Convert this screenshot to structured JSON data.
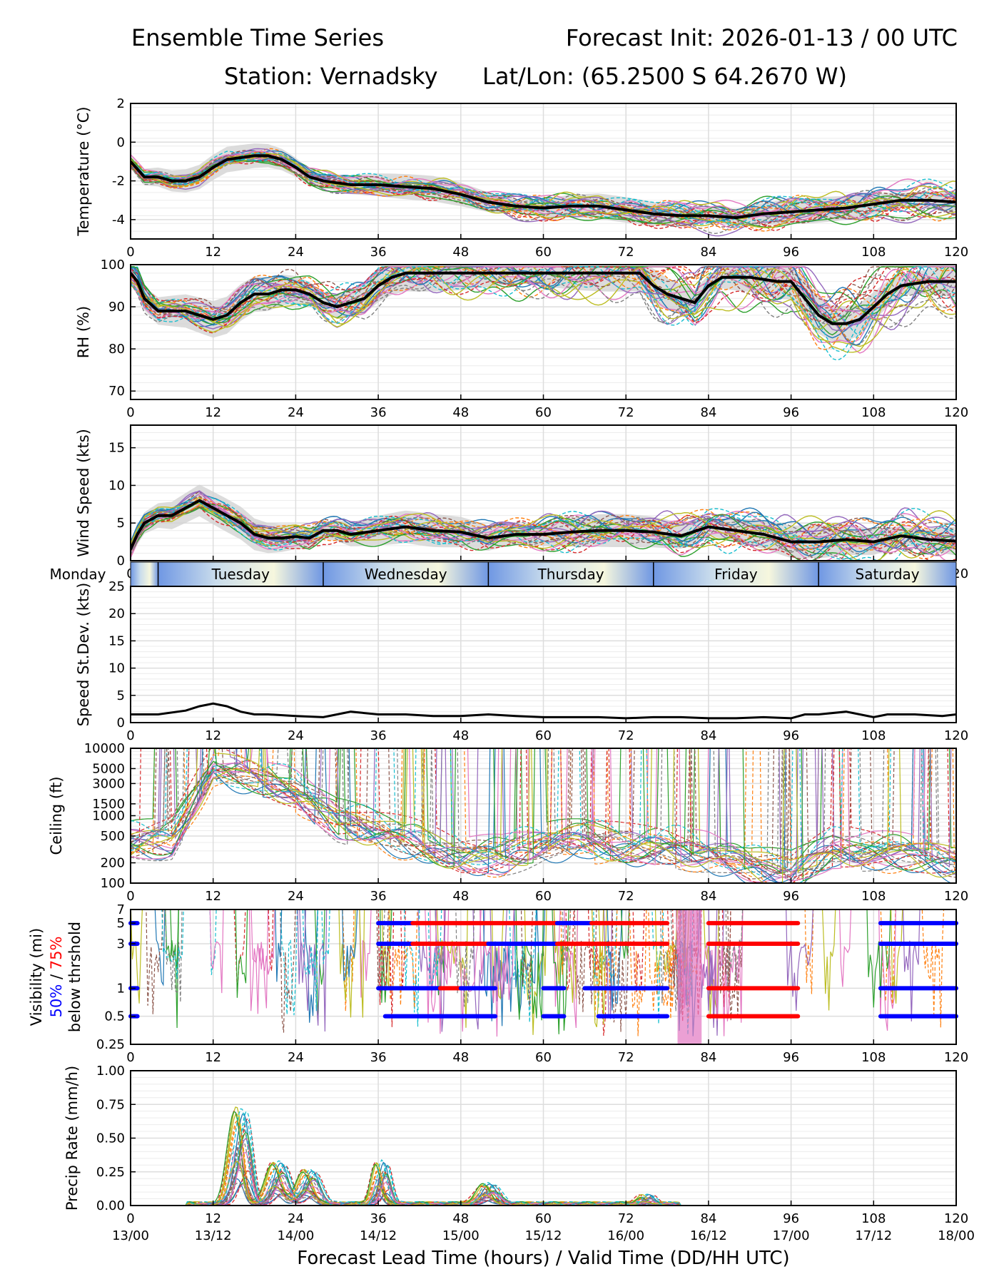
{
  "header": {
    "title_left": "Ensemble Time Series",
    "title_right": "Forecast Init: 2026-01-13 / 00 UTC",
    "station": "Station: Vernadsky",
    "latlon": "Lat/Lon: (65.2500 S 64.2670 W)"
  },
  "colors": {
    "mean": "#000000",
    "spread": "#d3d3d3",
    "vis50": "#0000ff",
    "vis75": "#ff0000",
    "members": [
      "#1f77b4",
      "#ff7f0e",
      "#2ca02c",
      "#d62728",
      "#9467bd",
      "#8c564b",
      "#e377c2",
      "#7f7f7f",
      "#bcbd22",
      "#17becf"
    ]
  },
  "chart_data": [
    {
      "type": "line",
      "id": "temperature",
      "ylabel": "Temperature (°C)",
      "xlim": [
        0,
        120
      ],
      "ylim": [
        -5,
        2
      ],
      "yticks": [
        -4,
        -2,
        0,
        2
      ],
      "xticks": [
        0,
        12,
        24,
        36,
        48,
        60,
        72,
        84,
        96,
        108,
        120
      ],
      "members": 30,
      "mean": {
        "x": [
          0,
          2,
          4,
          6,
          8,
          10,
          12,
          14,
          16,
          18,
          20,
          22,
          24,
          26,
          28,
          30,
          32,
          34,
          36,
          40,
          44,
          48,
          52,
          56,
          60,
          64,
          68,
          72,
          76,
          80,
          84,
          88,
          92,
          96,
          100,
          104,
          108,
          112,
          116,
          120
        ],
        "values": [
          -1.0,
          -1.8,
          -1.8,
          -2.0,
          -2.0,
          -1.8,
          -1.3,
          -0.9,
          -0.8,
          -0.7,
          -0.7,
          -0.9,
          -1.3,
          -1.8,
          -2.0,
          -2.1,
          -2.2,
          -2.2,
          -2.2,
          -2.3,
          -2.4,
          -2.7,
          -3.1,
          -3.3,
          -3.4,
          -3.3,
          -3.3,
          -3.5,
          -3.7,
          -3.8,
          -3.8,
          -3.9,
          -3.7,
          -3.6,
          -3.5,
          -3.4,
          -3.2,
          -3.0,
          -3.0,
          -3.1
        ]
      },
      "spread_width": 0.6
    },
    {
      "type": "line",
      "id": "rh",
      "ylabel": "RH (%)",
      "xlim": [
        0,
        120
      ],
      "ylim": [
        68,
        100
      ],
      "yticks": [
        70,
        80,
        90,
        100
      ],
      "xticks": [
        0,
        12,
        24,
        36,
        48,
        60,
        72,
        84,
        96,
        108,
        120
      ],
      "members": 30,
      "mean": {
        "x": [
          0,
          1,
          2,
          4,
          6,
          8,
          10,
          12,
          14,
          16,
          18,
          20,
          22,
          24,
          26,
          28,
          30,
          32,
          34,
          36,
          38,
          40,
          44,
          48,
          52,
          56,
          60,
          64,
          68,
          72,
          74,
          76,
          78,
          80,
          82,
          84,
          86,
          90,
          94,
          96,
          98,
          100,
          102,
          104,
          106,
          108,
          110,
          112,
          116,
          120
        ],
        "values": [
          98,
          96,
          92,
          89,
          89,
          89,
          88,
          87,
          88,
          91,
          93,
          93,
          94,
          94,
          93,
          91,
          90,
          91,
          92,
          95,
          97,
          98,
          98,
          98,
          98,
          98,
          98,
          98,
          98,
          98,
          98,
          95,
          93,
          92,
          91,
          95,
          97,
          97,
          96,
          96,
          92,
          88,
          86,
          86,
          87,
          90,
          93,
          95,
          96,
          96
        ]
      },
      "spread_width": 4
    },
    {
      "type": "line",
      "id": "wind",
      "ylabel": "Wind Speed (kts)",
      "xlim": [
        0,
        120
      ],
      "ylim": [
        0,
        18
      ],
      "yticks": [
        0,
        5,
        10,
        15
      ],
      "xticks": [
        0,
        12,
        24,
        36,
        48,
        60,
        72,
        84,
        96,
        108,
        120
      ],
      "members": 30,
      "mean": {
        "x": [
          0,
          1,
          2,
          4,
          6,
          8,
          10,
          12,
          14,
          16,
          18,
          20,
          22,
          24,
          26,
          28,
          30,
          32,
          36,
          40,
          44,
          48,
          52,
          56,
          60,
          64,
          68,
          72,
          76,
          80,
          84,
          88,
          92,
          96,
          100,
          104,
          108,
          112,
          116,
          120
        ],
        "values": [
          1.5,
          3.5,
          5,
          6,
          6,
          7,
          8,
          7,
          6,
          5,
          3.5,
          3,
          3,
          3.2,
          3,
          4,
          4,
          3.5,
          4,
          4.5,
          4,
          3.8,
          3,
          3.5,
          3.5,
          3.8,
          4,
          4,
          3.8,
          3.3,
          4.5,
          4,
          3.5,
          2.5,
          2.5,
          2.8,
          2.5,
          3.3,
          2.8,
          2.6
        ]
      },
      "spread_width": 2
    },
    {
      "type": "table",
      "id": "day-bar",
      "days": [
        "Monday",
        "Tuesday",
        "Wednesday",
        "Thursday",
        "Friday",
        "Saturday"
      ],
      "day_start_hours": [
        -20,
        4,
        28,
        52,
        76,
        100
      ]
    },
    {
      "type": "line",
      "id": "speed-stdev",
      "ylabel": "Speed St.Dev. (kts)",
      "xlim": [
        0,
        120
      ],
      "ylim": [
        0,
        25
      ],
      "yticks": [
        0,
        5,
        10,
        15,
        20,
        25
      ],
      "xticks": [
        0,
        12,
        24,
        36,
        48,
        60,
        72,
        84,
        96,
        108,
        120
      ],
      "mean": {
        "x": [
          0,
          4,
          8,
          10,
          12,
          14,
          16,
          18,
          20,
          24,
          28,
          30,
          32,
          36,
          40,
          44,
          48,
          52,
          56,
          60,
          64,
          68,
          72,
          76,
          80,
          84,
          88,
          92,
          96,
          98,
          100,
          104,
          106,
          108,
          110,
          114,
          118,
          120
        ],
        "values": [
          1.5,
          1.5,
          2.2,
          3.0,
          3.5,
          3.0,
          2.0,
          1.5,
          1.5,
          1.2,
          1.0,
          1.5,
          2.0,
          1.5,
          1.5,
          1.2,
          1.2,
          1.5,
          1.2,
          1.0,
          1.0,
          1.0,
          0.8,
          1.0,
          1.0,
          0.8,
          0.8,
          1.0,
          0.8,
          1.5,
          1.5,
          2.0,
          1.5,
          1.0,
          1.5,
          1.5,
          1.2,
          1.5
        ]
      }
    },
    {
      "type": "line",
      "id": "ceiling",
      "ylabel": "Ceiling (ft)",
      "scale": "log",
      "xlim": [
        0,
        120
      ],
      "ylim": [
        100,
        10000
      ],
      "yticks": [
        100,
        200,
        500,
        1000,
        1500,
        3000,
        5000,
        10000
      ],
      "xticks": [
        0,
        12,
        24,
        36,
        48,
        60,
        72,
        84,
        96,
        108,
        120
      ],
      "members": 30
    },
    {
      "type": "line",
      "id": "visibility",
      "ylabel": "Visibility (mi)",
      "ylabel_50": "50%",
      "ylabel_sep": " / ",
      "ylabel_75": "75%",
      "ylabel_below": "below thrshold",
      "scale": "log",
      "xlim": [
        0,
        120
      ],
      "ylim": [
        0.25,
        7
      ],
      "yticks": [
        0.25,
        0.5,
        1,
        3,
        5,
        7
      ],
      "xticks": [
        0,
        12,
        24,
        36,
        48,
        60,
        72,
        84,
        96,
        108,
        120
      ],
      "members": 30,
      "thresholds": [
        {
          "threshold": 5,
          "segments": [
            {
              "from": 0,
              "to": 1,
              "level": 50
            },
            {
              "from": 36,
              "to": 41,
              "level": 50
            },
            {
              "from": 41,
              "to": 62,
              "level": 75
            },
            {
              "from": 62,
              "to": 67,
              "level": 50
            },
            {
              "from": 67,
              "to": 78,
              "level": 75
            },
            {
              "from": 84,
              "to": 97,
              "level": 75
            },
            {
              "from": 109,
              "to": 120,
              "level": 50
            }
          ]
        },
        {
          "threshold": 3,
          "segments": [
            {
              "from": 0,
              "to": 1,
              "level": 50
            },
            {
              "from": 36,
              "to": 41,
              "level": 50
            },
            {
              "from": 41,
              "to": 52,
              "level": 75
            },
            {
              "from": 52,
              "to": 62,
              "level": 50
            },
            {
              "from": 62,
              "to": 78,
              "level": 75
            },
            {
              "from": 84,
              "to": 97,
              "level": 75
            },
            {
              "from": 109,
              "to": 120,
              "level": 50
            }
          ]
        },
        {
          "threshold": 1,
          "segments": [
            {
              "from": 0,
              "to": 1,
              "level": 50
            },
            {
              "from": 36,
              "to": 45,
              "level": 50
            },
            {
              "from": 45,
              "to": 48,
              "level": 75
            },
            {
              "from": 48,
              "to": 53,
              "level": 50
            },
            {
              "from": 60,
              "to": 63,
              "level": 50
            },
            {
              "from": 66,
              "to": 68,
              "level": 50
            },
            {
              "from": 68,
              "to": 78,
              "level": 50
            },
            {
              "from": 84,
              "to": 97,
              "level": 75
            },
            {
              "from": 109,
              "to": 120,
              "level": 50
            }
          ]
        },
        {
          "threshold": 0.5,
          "segments": [
            {
              "from": 0,
              "to": 1,
              "level": 50
            },
            {
              "from": 37,
              "to": 45,
              "level": 50
            },
            {
              "from": 45,
              "to": 53,
              "level": 50
            },
            {
              "from": 60,
              "to": 63,
              "level": 50
            },
            {
              "from": 68,
              "to": 78,
              "level": 50
            },
            {
              "from": 84,
              "to": 97,
              "level": 75
            },
            {
              "from": 109,
              "to": 120,
              "level": 50
            }
          ]
        }
      ]
    },
    {
      "type": "line",
      "id": "precip",
      "ylabel": "Precip Rate (mm/h)",
      "xlim": [
        0,
        120
      ],
      "ylim": [
        0,
        1
      ],
      "yticks": [
        0.0,
        0.25,
        0.5,
        0.75,
        1.0
      ],
      "ytick_labels": [
        "0.00",
        "0.25",
        "0.50",
        "0.75",
        "1.00"
      ],
      "xticks": [
        0,
        12,
        24,
        36,
        48,
        60,
        72,
        84,
        96,
        108,
        120
      ],
      "xtick_dates": [
        "13/00",
        "13/12",
        "14/00",
        "14/12",
        "15/00",
        "15/12",
        "16/00",
        "16/12",
        "17/00",
        "17/12",
        "18/00"
      ],
      "xlabel": "Forecast Lead Time (hours) / Valid Time (DD/HH UTC)",
      "members": 30,
      "peaks": [
        {
          "x": 15.5,
          "height": 0.48,
          "width": 1.2
        },
        {
          "x": 16.5,
          "height": 0.42,
          "width": 1.0
        },
        {
          "x": 21.5,
          "height": 0.32,
          "width": 1.5
        },
        {
          "x": 26,
          "height": 0.26,
          "width": 1.5
        },
        {
          "x": 36.5,
          "height": 0.32,
          "width": 1.0
        },
        {
          "x": 52,
          "height": 0.15,
          "width": 1.5
        },
        {
          "x": 75,
          "height": 0.06,
          "width": 1.0
        }
      ]
    }
  ]
}
